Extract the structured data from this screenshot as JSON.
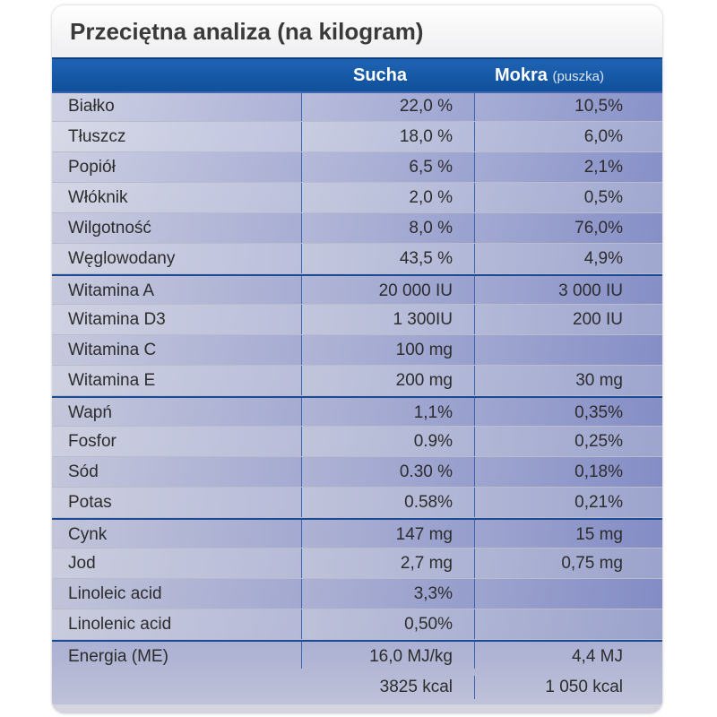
{
  "title": "Przeciętna analiza (na kilogram)",
  "header": {
    "dry": "Sucha",
    "wet": "Mokra",
    "wet_sub": "(puszka)"
  },
  "rows": [
    {
      "label": "Białko",
      "dry": "22,0 %",
      "wet": "10,5%"
    },
    {
      "label": "Tłuszcz",
      "dry": "18,0 %",
      "wet": "6,0%"
    },
    {
      "label": "Popiół",
      "dry": "6,5 %",
      "wet": "2,1%"
    },
    {
      "label": "Włóknik",
      "dry": "2,0 %",
      "wet": "0,5%"
    },
    {
      "label": "Wilgotność",
      "dry": "8,0 %",
      "wet": "76,0%"
    },
    {
      "label": "Węglowodany",
      "dry": "43,5 %",
      "wet": "4,9%"
    },
    {
      "label": "Witamina A",
      "dry": "20 000 IU",
      "wet": "3 000 IU"
    },
    {
      "label": "Witamina D3",
      "dry": "1 300IU",
      "wet": "200 IU"
    },
    {
      "label": "Witamina C",
      "dry": "100 mg",
      "wet": ""
    },
    {
      "label": "Witamina E",
      "dry": "200 mg",
      "wet": "30 mg"
    },
    {
      "label": "Wapń",
      "dry": "1,1%",
      "wet": "0,35%"
    },
    {
      "label": "Fosfor",
      "dry": "0.9%",
      "wet": "0,25%"
    },
    {
      "label": "Sód",
      "dry": "0.30 %",
      "wet": "0,18%"
    },
    {
      "label": "Potas",
      "dry": "0.58%",
      "wet": "0,21%"
    },
    {
      "label": "Cynk",
      "dry": "147 mg",
      "wet": "15 mg"
    },
    {
      "label": "Jod",
      "dry": "2,7 mg",
      "wet": "0,75 mg"
    },
    {
      "label": "Linoleic acid",
      "dry": "3,3%",
      "wet": ""
    },
    {
      "label": "Linolenic acid",
      "dry": "0,50%",
      "wet": ""
    }
  ],
  "energy": {
    "label": "Energia (ME)",
    "dry_mj": "16,0 MJ/kg",
    "wet_mj": "4,4 MJ",
    "dry_kcal": "3825 kcal",
    "wet_kcal": "1 050 kcal"
  }
}
